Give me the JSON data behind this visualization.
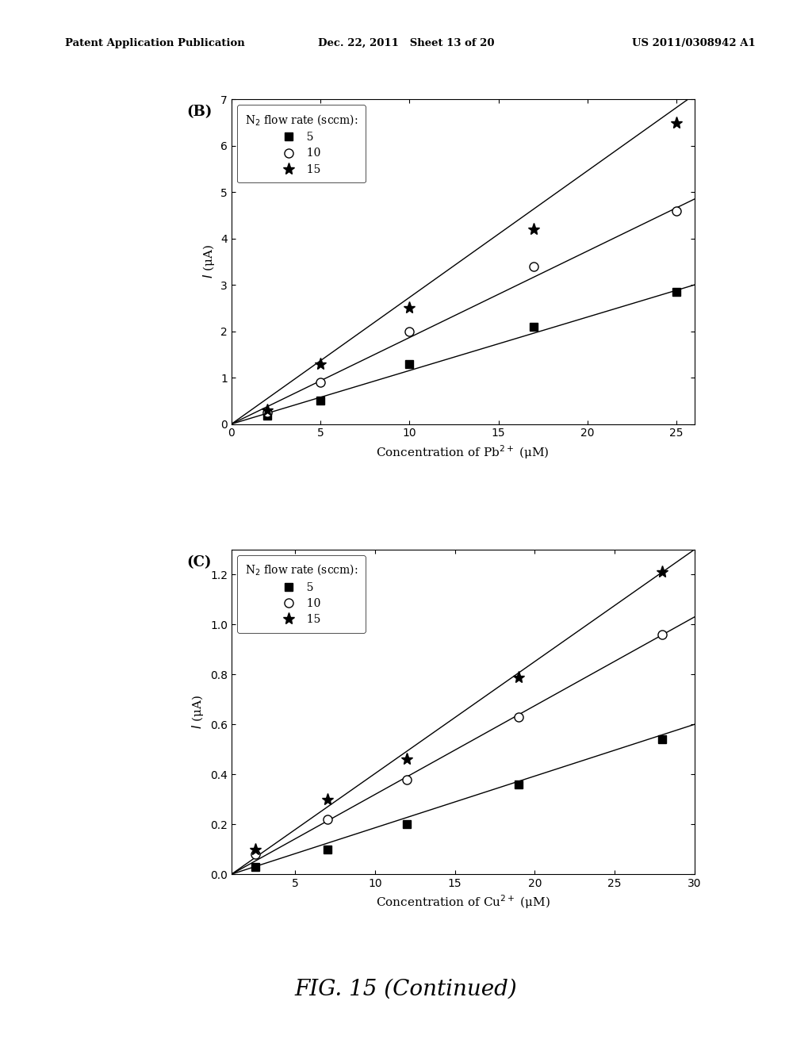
{
  "panel_B": {
    "label": "(B)",
    "xlabel": "Concentration of Pb$^{2+}$ (μM)",
    "ylabel": "$I$ (μA)",
    "xlim": [
      0,
      26
    ],
    "ylim": [
      0,
      7
    ],
    "xticks": [
      0,
      5,
      10,
      15,
      20,
      25
    ],
    "yticks": [
      0,
      1,
      2,
      3,
      4,
      5,
      6,
      7
    ],
    "legend_title": "N$_2$ flow rate (sccm):",
    "series": [
      {
        "label": "5",
        "marker": "s",
        "marker_fill": "black",
        "x_data": [
          2,
          5,
          10,
          17,
          25
        ],
        "y_data": [
          0.18,
          0.5,
          1.3,
          2.1,
          2.85
        ],
        "fit_x": [
          0,
          26
        ],
        "fit_y": [
          0.0,
          3.0
        ]
      },
      {
        "label": "10",
        "marker": "o",
        "marker_fill": "white",
        "x_data": [
          2,
          5,
          10,
          17,
          25
        ],
        "y_data": [
          0.25,
          0.9,
          2.0,
          3.4,
          4.6
        ],
        "fit_x": [
          0,
          26
        ],
        "fit_y": [
          0.0,
          4.85
        ]
      },
      {
        "label": "15",
        "marker": "*",
        "marker_fill": "black",
        "x_data": [
          2,
          5,
          10,
          17,
          25
        ],
        "y_data": [
          0.3,
          1.3,
          2.5,
          4.2,
          6.5
        ],
        "fit_x": [
          0,
          26
        ],
        "fit_y": [
          0.0,
          7.1
        ]
      }
    ]
  },
  "panel_C": {
    "label": "(C)",
    "xlabel": "Concentration of Cu$^{2+}$ (μM)",
    "ylabel": "$I$ (μA)",
    "xlim": [
      1,
      30
    ],
    "ylim": [
      0.0,
      1.3
    ],
    "xticks": [
      5,
      10,
      15,
      20,
      25,
      30
    ],
    "yticks": [
      0.0,
      0.2,
      0.4,
      0.6,
      0.8,
      1.0,
      1.2
    ],
    "legend_title": "N$_2$ flow rate (sccm):",
    "series": [
      {
        "label": "5",
        "marker": "s",
        "marker_fill": "black",
        "x_data": [
          2.5,
          7,
          12,
          19,
          28
        ],
        "y_data": [
          0.03,
          0.1,
          0.2,
          0.36,
          0.54
        ],
        "fit_x": [
          1,
          30
        ],
        "fit_y": [
          0.0,
          0.6
        ]
      },
      {
        "label": "10",
        "marker": "o",
        "marker_fill": "white",
        "x_data": [
          2.5,
          7,
          12,
          19,
          28
        ],
        "y_data": [
          0.08,
          0.22,
          0.38,
          0.63,
          0.96
        ],
        "fit_x": [
          1,
          30
        ],
        "fit_y": [
          0.0,
          1.03
        ]
      },
      {
        "label": "15",
        "marker": "*",
        "marker_fill": "black",
        "x_data": [
          2.5,
          7,
          12,
          19,
          28
        ],
        "y_data": [
          0.1,
          0.3,
          0.46,
          0.79,
          1.21
        ],
        "fit_x": [
          1,
          30
        ],
        "fit_y": [
          0.0,
          1.3
        ]
      }
    ]
  },
  "header_left": "Patent Application Publication",
  "header_mid": "Dec. 22, 2011   Sheet 13 of 20",
  "header_right": "US 2011/0308942 A1",
  "footer_text": "FIG. 15 (Continued)",
  "background_color": "#ffffff",
  "text_color": "#000000"
}
